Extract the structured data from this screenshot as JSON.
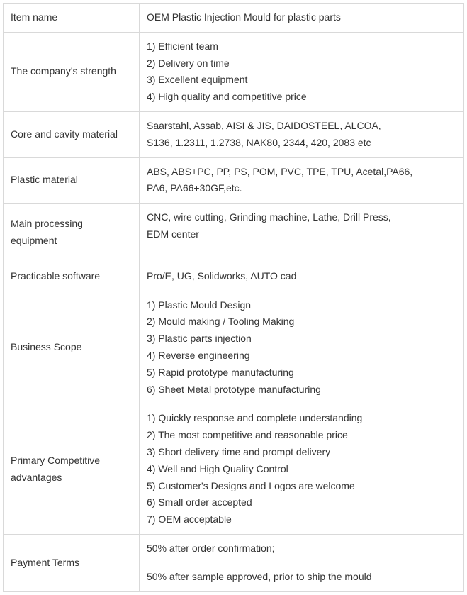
{
  "rows": [
    {
      "label": "Item  name",
      "value": "OEM Plastic Injection Mould for plastic parts",
      "kind": "text",
      "id": "item-name"
    },
    {
      "label": "The company's strength",
      "lines": [
        "1) Efficient team",
        "2) Delivery on time",
        "3) Excellent equipment",
        "4) High quality and competitive price"
      ],
      "kind": "list",
      "id": "company-strength"
    },
    {
      "label": "Core and cavity material",
      "lines": [
        "Saarstahl, Assab, AISI & JIS, DAIDOSTEEL, ALCOA,",
        "S136, 1.2311, 1.2738, NAK80, 2344, 420, 2083 etc"
      ],
      "kind": "wrap",
      "id": "core-cavity-material"
    },
    {
      "label": "Plastic material",
      "lines": [
        "ABS, ABS+PC, PP, PS, POM, PVC, TPE, TPU, Acetal,PA66,",
        "PA6, PA66+30GF,etc."
      ],
      "kind": "wrap",
      "id": "plastic-material"
    },
    {
      "label": "Main processing equipment",
      "lines": [
        "CNC, wire cutting, Grinding machine, Lathe, Drill Press,",
        "EDM center"
      ],
      "kind": "wrap",
      "id": "main-processing-equipment",
      "extraClass": "tall-bottom"
    },
    {
      "label": "Practicable software",
      "value": "Pro/E, UG, Solidworks, AUTO cad",
      "kind": "text",
      "id": "practicable-software"
    },
    {
      "label": "Business  Scope",
      "lines": [
        "1) Plastic Mould Design",
        "2) Mould making / Tooling Making",
        "3) Plastic parts injection",
        "4) Reverse engineering",
        "5) Rapid prototype manufacturing",
        "6) Sheet Metal prototype manufacturing"
      ],
      "kind": "list",
      "id": "business-scope"
    },
    {
      "label": "Primary Competitive advantages",
      "lines": [
        "1) Quickly response and complete understanding",
        "2) The most competitive and reasonable price",
        "3) Short delivery time and prompt delivery",
        "4) Well and High Quality Control",
        "5) Customer's Designs and Logos are welcome",
        "6) Small order accepted",
        "7) OEM acceptable"
      ],
      "kind": "list",
      "id": "primary-competitive-advantages"
    },
    {
      "label": "Payment Terms",
      "lines": [
        "50% after order confirmation;",
        "",
        "50% after sample approved, prior to ship the mould"
      ],
      "kind": "list",
      "id": "payment-terms"
    }
  ]
}
